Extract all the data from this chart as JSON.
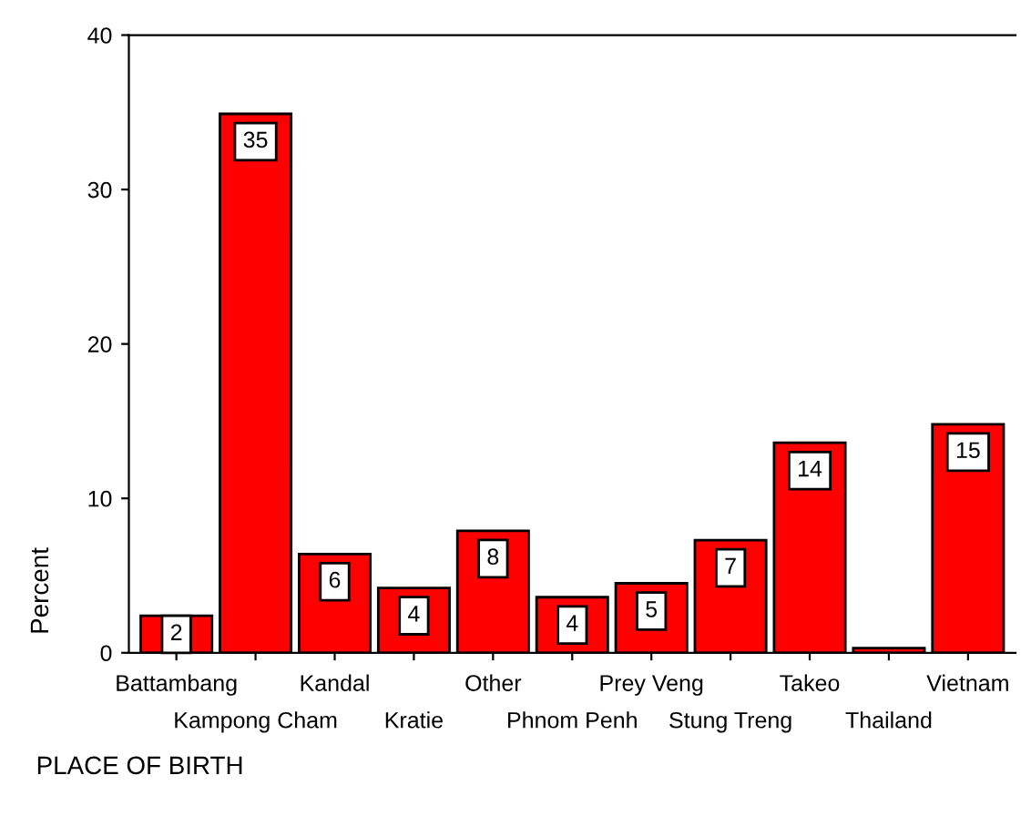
{
  "chart_data": {
    "type": "bar",
    "xlabel": "PLACE OF BIRTH",
    "ylabel": "Percent",
    "categories": [
      "Battambang",
      "Kampong Cham",
      "Kandal",
      "Kratie",
      "Other",
      "Phnom Penh",
      "Prey Veng",
      "Stung Treng",
      "Takeo",
      "Thailand",
      "Vietnam"
    ],
    "values": [
      2.4,
      34.9,
      6.4,
      4.2,
      7.9,
      3.6,
      4.5,
      7.3,
      13.6,
      0.3,
      14.8
    ],
    "value_labels": [
      "2",
      "35",
      "6",
      "4",
      "8",
      "4",
      "5",
      "7",
      "14",
      null,
      "15"
    ],
    "color": "#ff0000",
    "ylim": [
      0,
      40
    ],
    "yticks": [
      0,
      10,
      20,
      30,
      40
    ],
    "grid": false,
    "legend": false
  }
}
